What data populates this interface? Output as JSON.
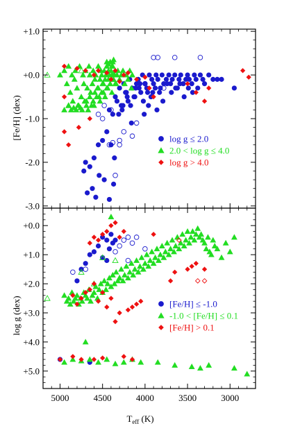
{
  "colors": {
    "blue": "#1a1acd",
    "green": "#22dd22",
    "red": "#ee1111",
    "axis": "#000000"
  },
  "chart_data": [
    {
      "type": "scatter",
      "panel": "top",
      "ylabel": "[Fe/H] (dex)",
      "xlim": [
        5200,
        2700
      ],
      "ylim": [
        -3.05,
        1.05
      ],
      "x_ticks": [
        5000,
        4500,
        4000,
        3500,
        3000
      ],
      "y_ticks": [
        1,
        0,
        -1,
        -2,
        -3
      ],
      "y_tick_labels": [
        "+1.0",
        "+0.0",
        "-1.0",
        "-2.0",
        "-3.0"
      ],
      "grid": false,
      "legend_position": "lower-right",
      "legend": [
        {
          "symbol": "circle",
          "color": "blue",
          "label": "log g ≤ 2.0"
        },
        {
          "symbol": "triangle",
          "color": "green",
          "label": "2.0 < log g ≤ 4.0"
        },
        {
          "symbol": "diamond",
          "color": "red",
          "label": "log g > 4.0"
        }
      ],
      "series": [
        {
          "color": "blue",
          "marker": "circle",
          "filled": true,
          "x": [
            4350,
            4300,
            4280,
            4250,
            4220,
            4200,
            4180,
            4150,
            4120,
            4100,
            4080,
            4050,
            4030,
            4000,
            3980,
            3950,
            3920,
            3900,
            3870,
            3850,
            3820,
            3800,
            3780,
            3750,
            3720,
            3700,
            3680,
            3650,
            3620,
            3600,
            3580,
            3550,
            3520,
            3500,
            3480,
            3450,
            3420,
            3400,
            3380,
            3350,
            3320,
            3300,
            3250,
            3200,
            3150,
            3100,
            2950,
            4420,
            4380,
            4330,
            4270,
            4230,
            4170,
            4130,
            4070,
            4020,
            3970,
            3930,
            3880,
            3830,
            3790,
            3740,
            3690,
            3640,
            3590,
            3540,
            3490,
            3440,
            4450,
            4400,
            4360,
            4310,
            4260,
            4210,
            4160,
            4110,
            4060,
            4010,
            3960,
            3910,
            3860,
            4500,
            4550,
            4600,
            4650,
            4700,
            4720,
            4680,
            4620,
            4580,
            4540,
            4480,
            4420,
            4370
          ],
          "y": [
            -0.5,
            -0.3,
            -0.7,
            -0.2,
            -0.4,
            -0.6,
            -0.1,
            -0.3,
            -0.5,
            -0.2,
            -0.1,
            -0.4,
            0.0,
            -0.2,
            -0.3,
            0.0,
            -0.1,
            -0.2,
            0.0,
            -0.1,
            -0.3,
            0.0,
            -0.2,
            -0.1,
            0.0,
            -0.2,
            -0.1,
            0.0,
            -0.3,
            -0.1,
            0.0,
            -0.2,
            -0.1,
            0.0,
            -0.1,
            -0.2,
            0.0,
            -0.1,
            -0.3,
            0.0,
            -0.1,
            -0.2,
            0.0,
            -0.1,
            -0.1,
            -0.1,
            -0.3,
            -0.8,
            -0.9,
            -0.6,
            -0.8,
            -0.4,
            -0.7,
            -0.5,
            -0.3,
            -0.6,
            -0.4,
            -0.5,
            -0.3,
            -0.4,
            -0.6,
            -0.2,
            -0.4,
            -0.3,
            -0.2,
            -0.5,
            -0.3,
            -0.4,
            -1.3,
            -1.6,
            -1.9,
            -0.9,
            -0.7,
            -0.5,
            -1.1,
            -0.3,
            -0.2,
            -0.9,
            -0.7,
            -0.4,
            -0.8,
            -1.5,
            -1.6,
            -1.9,
            -2.1,
            -2.0,
            -2.2,
            -2.7,
            -2.6,
            -2.8,
            -2.3,
            -2.4,
            -2.85,
            -2.5
          ]
        },
        {
          "color": "blue",
          "marker": "circle",
          "filled": false,
          "x": [
            3900,
            3850,
            3650,
            3350,
            4000,
            3780,
            4250,
            4150,
            4100,
            4300,
            4420,
            4500,
            4400,
            4350,
            4550,
            4480,
            4380,
            4300
          ],
          "y": [
            0.4,
            0.4,
            0.4,
            0.4,
            -0.2,
            -0.3,
            -1.3,
            -1.4,
            -1.1,
            -1.6,
            -1.6,
            -1.0,
            -0.8,
            -2.3,
            -0.9,
            -0.7,
            -1.55,
            -1.5
          ]
        },
        {
          "color": "green",
          "marker": "triangle",
          "filled": true,
          "x": [
            5000,
            4950,
            4920,
            4900,
            4880,
            4860,
            4850,
            4830,
            4820,
            4800,
            4780,
            4770,
            4750,
            4730,
            4720,
            4700,
            4690,
            4680,
            4660,
            4650,
            4640,
            4620,
            4610,
            4600,
            4590,
            4580,
            4560,
            4550,
            4540,
            4530,
            4520,
            4510,
            4500,
            4490,
            4480,
            4470,
            4460,
            4450,
            4440,
            4430,
            4420,
            4410,
            4400,
            4390,
            4380,
            4370,
            4360,
            4350,
            4340,
            4330,
            4320,
            4300,
            4280,
            4260,
            4240,
            4220,
            4200,
            4180,
            4160,
            4150,
            4950,
            4900,
            4870,
            4840,
            4810,
            4790,
            4760,
            4740,
            4710,
            4690,
            4670,
            4650,
            4630,
            4610,
            4590,
            4570,
            4550,
            4530,
            4510,
            4490,
            4470,
            4450,
            4430,
            4410,
            4390,
            4370,
            4350,
            4450,
            4430,
            4410,
            4390,
            4380,
            4370
          ],
          "y": [
            0.0,
            0.1,
            -0.2,
            0.2,
            -0.4,
            0.0,
            -0.6,
            -0.1,
            0.1,
            -0.3,
            -0.7,
            0.2,
            -0.5,
            0.0,
            -0.2,
            0.1,
            -0.6,
            -0.3,
            0.2,
            0.0,
            -0.4,
            -0.2,
            0.1,
            -0.7,
            -0.1,
            0.0,
            -0.3,
            0.2,
            -0.5,
            -0.1,
            0.1,
            0.0,
            -0.2,
            -0.4,
            0.1,
            -0.1,
            0.0,
            0.2,
            -0.3,
            0.1,
            0.0,
            -0.2,
            0.1,
            0.0,
            0.2,
            -0.1,
            0.0,
            0.1,
            -0.2,
            0.0,
            0.1,
            -0.1,
            0.0,
            0.1,
            -0.2,
            0.0,
            -0.1,
            0.1,
            -0.3,
            0.0,
            -0.8,
            -0.7,
            -0.8,
            -0.75,
            -0.8,
            -0.7,
            -0.75,
            -0.8,
            -0.6,
            -0.7,
            -0.8,
            -0.5,
            -0.7,
            -0.6,
            -0.4,
            -0.5,
            -0.3,
            -0.6,
            -0.4,
            -0.2,
            -0.5,
            -0.3,
            -0.1,
            -0.2,
            -0.4,
            0.0,
            -0.2,
            0.3,
            0.25,
            0.3,
            0.2,
            0.3,
            0.35
          ]
        },
        {
          "color": "green",
          "marker": "triangle",
          "filled": false,
          "x": [
            5150,
            4380,
            4900,
            4750
          ],
          "y": [
            0.0,
            -0.1,
            -0.7,
            0.1
          ]
        },
        {
          "color": "red",
          "marker": "diamond",
          "filled": true,
          "x": [
            4950,
            4800,
            4700,
            4600,
            4550,
            4450,
            4400,
            4350,
            4300,
            4250,
            4200,
            4100,
            4000,
            3950,
            3900,
            3500,
            3400,
            3300,
            3250,
            2850,
            2780,
            4950,
            4900,
            4780,
            4650,
            4950
          ],
          "y": [
            0.2,
            0.15,
            0.1,
            0.0,
            0.1,
            0.05,
            -0.1,
            0.1,
            -0.15,
            0.0,
            0.05,
            -0.1,
            -0.05,
            -0.3,
            -0.5,
            -0.2,
            -0.4,
            -0.6,
            -0.3,
            0.1,
            -0.05,
            -1.3,
            -1.6,
            -1.2,
            -1.0,
            -0.5
          ]
        }
      ]
    },
    {
      "type": "scatter",
      "panel": "bottom",
      "xlabel": "T_eff (K)",
      "ylabel": "log g (dex)",
      "xlim": [
        5200,
        2700
      ],
      "ylim": [
        -0.6,
        5.6
      ],
      "y_inverted": true,
      "x_ticks": [
        5000,
        4500,
        4000,
        3500,
        3000
      ],
      "x_tick_labels": [
        "5000",
        "4500",
        "4000",
        "3500",
        "3000"
      ],
      "y_ticks": [
        0,
        1,
        2,
        3,
        4,
        5
      ],
      "y_tick_labels": [
        "+0.0",
        "+1.0",
        "+2.0",
        "+3.0",
        "+4.0",
        "+5.0"
      ],
      "grid": false,
      "legend_position": "lower-right",
      "legend": [
        {
          "symbol": "circle",
          "color": "blue",
          "label": "[Fe/H] ≤ -1.0"
        },
        {
          "symbol": "triangle",
          "color": "green",
          "label": "-1.0 < [Fe/H] ≤ 0.1"
        },
        {
          "symbol": "diamond",
          "color": "red",
          "label": "[Fe/H] > 0.1"
        }
      ],
      "series": [
        {
          "color": "blue",
          "marker": "circle",
          "filled": true,
          "x": [
            4500,
            4450,
            4400,
            4380,
            4350,
            4550,
            4600,
            4650,
            4700,
            4750,
            4800,
            4500,
            4450,
            4420,
            5000,
            4650
          ],
          "y": [
            0.4,
            0.5,
            0.3,
            0.6,
            0.5,
            0.7,
            0.9,
            1.0,
            1.3,
            1.5,
            1.9,
            1.1,
            1.2,
            0.8,
            4.6,
            4.7
          ]
        },
        {
          "color": "blue",
          "marker": "circle",
          "filled": false,
          "x": [
            4250,
            4200,
            4150,
            4100,
            4300,
            4350,
            4700,
            4850,
            4200,
            4000
          ],
          "y": [
            0.5,
            0.4,
            0.6,
            0.4,
            0.7,
            0.9,
            1.5,
            1.6,
            1.2,
            0.8
          ]
        },
        {
          "color": "green",
          "marker": "triangle",
          "filled": true,
          "x": [
            4950,
            4920,
            4900,
            4880,
            4860,
            4840,
            4820,
            4800,
            4780,
            4760,
            4740,
            4720,
            4700,
            4680,
            4660,
            4640,
            4620,
            4600,
            4580,
            4560,
            4540,
            4520,
            4500,
            4480,
            4460,
            4440,
            4420,
            4400,
            4380,
            4360,
            4340,
            4320,
            4300,
            4280,
            4260,
            4240,
            4220,
            4200,
            4180,
            4160,
            4140,
            4120,
            4100,
            4080,
            4060,
            4040,
            4020,
            4000,
            3980,
            3960,
            3940,
            3920,
            3900,
            3880,
            3860,
            3840,
            3820,
            3800,
            3780,
            3760,
            3740,
            3720,
            3700,
            3680,
            3660,
            3640,
            3620,
            3600,
            3580,
            3560,
            3540,
            3520,
            3500,
            3480,
            3460,
            3440,
            3420,
            3400,
            3380,
            3360,
            3340,
            3320,
            3300,
            3280,
            3260,
            3240,
            3220,
            3200,
            3180,
            3150,
            3100,
            3050,
            3000,
            2950,
            4400,
            4700,
            4950,
            4850,
            4750,
            4650,
            4550,
            4450,
            4350,
            4250,
            4150,
            4050,
            3850,
            3650,
            3450,
            3350,
            3250,
            2950,
            2800
          ],
          "y": [
            2.4,
            2.6,
            2.5,
            2.7,
            2.3,
            2.6,
            2.5,
            2.4,
            2.7,
            2.5,
            2.6,
            2.3,
            2.4,
            2.5,
            2.2,
            2.6,
            2.4,
            2.3,
            2.1,
            2.5,
            2.2,
            2.0,
            2.3,
            1.9,
            2.2,
            2.0,
            1.8,
            2.1,
            1.7,
            2.0,
            1.6,
            1.9,
            1.8,
            1.5,
            1.9,
            1.7,
            1.4,
            1.8,
            1.6,
            1.3,
            1.7,
            1.5,
            1.2,
            1.6,
            1.4,
            1.1,
            1.5,
            1.3,
            1.0,
            1.4,
            1.2,
            0.9,
            1.3,
            1.1,
            0.8,
            1.2,
            1.0,
            0.7,
            1.1,
            0.9,
            0.6,
            1.0,
            0.8,
            0.5,
            0.9,
            0.7,
            0.4,
            0.8,
            0.6,
            0.3,
            0.7,
            0.5,
            0.2,
            0.6,
            0.4,
            0.2,
            0.5,
            0.3,
            0.1,
            0.4,
            0.3,
            0.5,
            0.6,
            0.8,
            0.4,
            0.9,
            1.0,
            0.5,
            0.7,
            0.8,
            1.1,
            0.6,
            0.9,
            0.4,
            -0.3,
            4.0,
            4.7,
            4.6,
            4.65,
            4.6,
            4.7,
            4.6,
            4.75,
            4.7,
            4.6,
            4.7,
            4.7,
            4.8,
            4.85,
            4.9,
            4.8,
            4.9,
            5.1
          ]
        },
        {
          "color": "green",
          "marker": "triangle",
          "filled": false,
          "x": [
            5150,
            4500,
            4350,
            4300,
            4600,
            4750,
            4050
          ],
          "y": [
            2.5,
            1.1,
            1.2,
            1.8,
            2.0,
            1.6,
            1.5
          ]
        },
        {
          "color": "red",
          "marker": "diamond",
          "filled": true,
          "x": [
            4250,
            4350,
            4400,
            4450,
            4500,
            4550,
            4600,
            4650,
            4700,
            4750,
            4800,
            4850,
            4650,
            4550,
            4450,
            4400,
            4500,
            4600,
            4350,
            4300,
            4200,
            4150,
            4100,
            4050,
            3700,
            3650,
            3500,
            3450,
            3400,
            3300,
            3900,
            4300,
            4250,
            4150,
            4500,
            4600,
            4850,
            4750,
            5000
          ],
          "y": [
            0.2,
            -0.1,
            0.0,
            0.2,
            0.3,
            0.5,
            0.4,
            0.6,
            2.3,
            2.5,
            2.7,
            2.4,
            2.2,
            2.6,
            2.8,
            2.5,
            2.3,
            2.0,
            3.3,
            3.0,
            2.9,
            2.8,
            2.7,
            2.6,
            1.9,
            1.6,
            1.5,
            1.4,
            1.3,
            1.5,
            0.3,
            0.4,
            4.5,
            4.6,
            4.55,
            4.6,
            4.5,
            4.6,
            4.6
          ]
        },
        {
          "color": "red",
          "marker": "diamond",
          "filled": false,
          "x": [
            3600,
            3380,
            3300
          ],
          "y": [
            0.5,
            1.9,
            1.9
          ]
        }
      ]
    }
  ]
}
